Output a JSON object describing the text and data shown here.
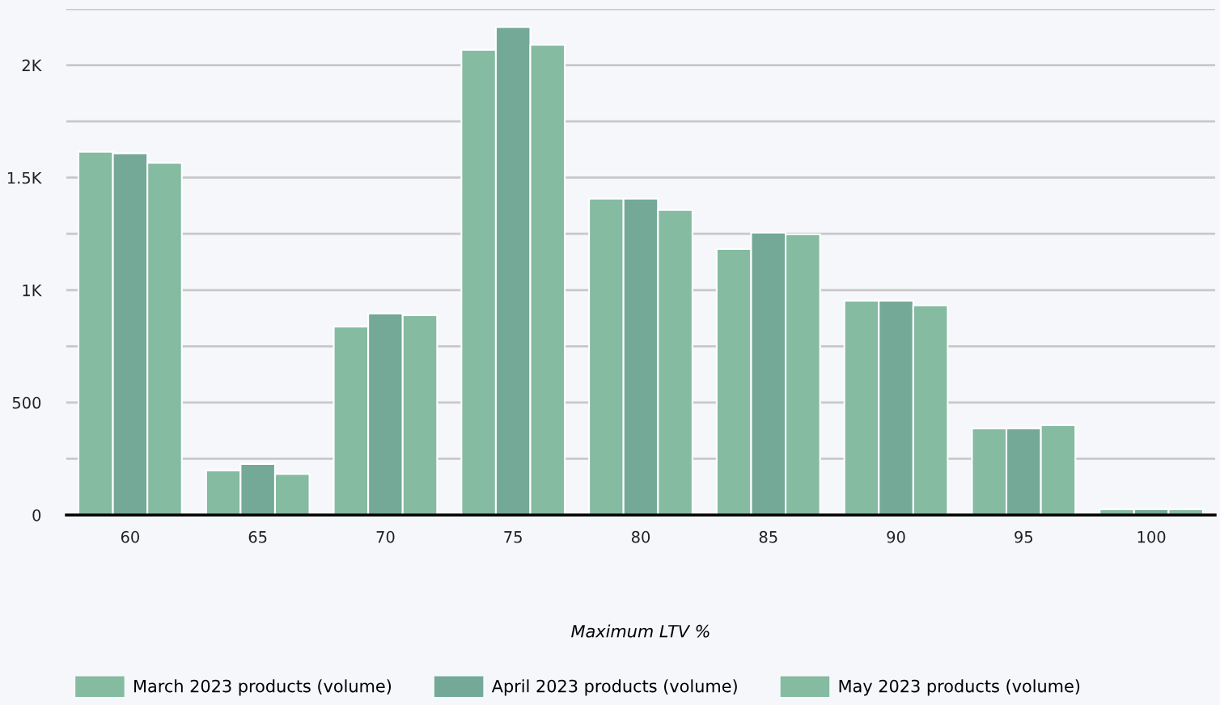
{
  "chart_data": {
    "type": "bar",
    "xlabel": "Maximum LTV %",
    "categories": [
      "60",
      "65",
      "70",
      "75",
      "80",
      "85",
      "90",
      "95",
      "100"
    ],
    "series": [
      {
        "name": "March 2023 products (volume)",
        "color": "#85bba1",
        "values": [
          1615,
          198,
          838,
          2068,
          1406,
          1183,
          953,
          385,
          25
        ]
      },
      {
        "name": "April 2023 products (volume)",
        "color": "#73a996",
        "values": [
          1608,
          227,
          896,
          2169,
          1406,
          1255,
          953,
          385,
          25
        ]
      },
      {
        "name": "May 2023 products (volume)",
        "color": "#85bba1",
        "values": [
          1565,
          183,
          888,
          2090,
          1356,
          1248,
          932,
          399,
          25
        ]
      }
    ],
    "ylim": [
      0,
      2250
    ],
    "yticks": [
      0,
      {
        "value": 250,
        "label": null
      },
      500,
      {
        "value": 750,
        "label": null
      },
      {
        "value": 1000,
        "label": "1K"
      },
      {
        "value": 1250,
        "label": null
      },
      {
        "value": 1500,
        "label": "1.5K"
      },
      {
        "value": 1750,
        "label": null
      },
      {
        "value": 2000,
        "label": "2K"
      },
      {
        "value": 2250,
        "label": null
      }
    ],
    "grid": "y",
    "legend": "bottom"
  }
}
